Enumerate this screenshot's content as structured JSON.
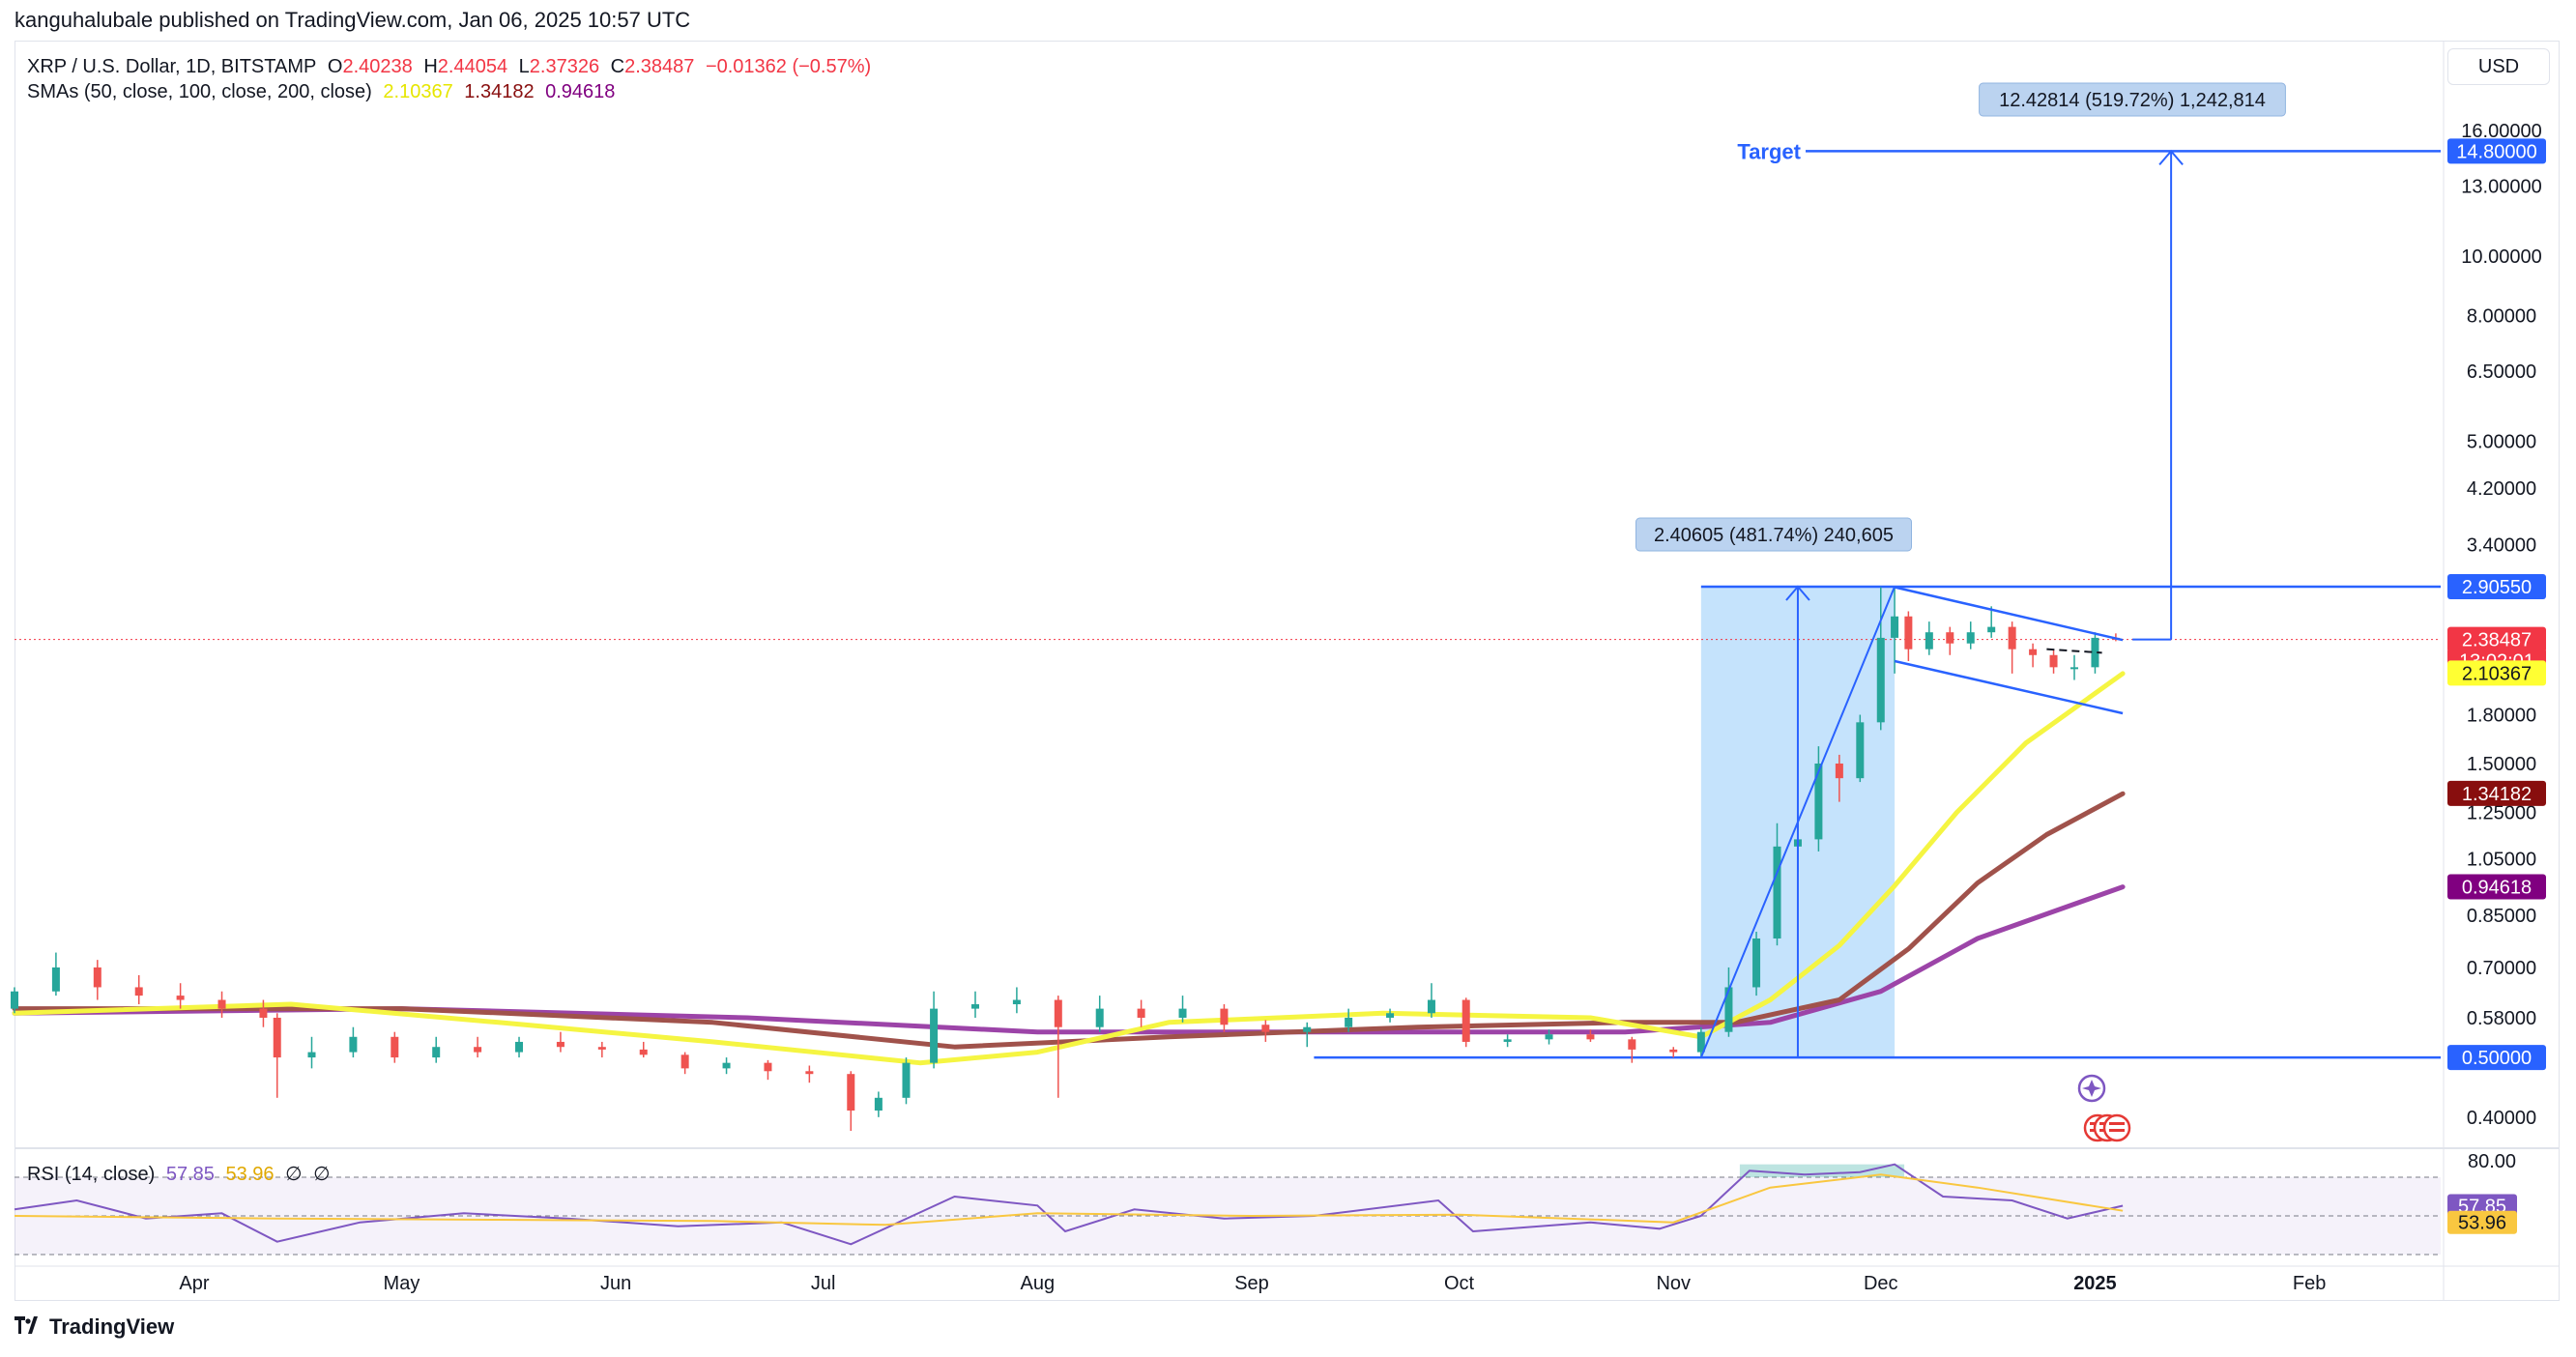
{
  "attribution": "kanguhalubale published on TradingView.com, Jan 06, 2025 10:57 UTC",
  "symbol": {
    "title": "XRP / U.S. Dollar, 1D, BITSTAMP",
    "open_label": "O",
    "open": "2.40238",
    "high_label": "H",
    "high": "2.44054",
    "low_label": "L",
    "low": "2.37326",
    "close_label": "C",
    "close": "2.38487",
    "change": "−0.01362 (−0.57%)"
  },
  "sma_legend": {
    "title": "SMAs (50, close, 100, close, 200, close)",
    "sma50": "2.10367",
    "sma100": "1.34182",
    "sma200": "0.94618"
  },
  "rsi_legend": {
    "title": "RSI (14, close)",
    "rsi": "57.85",
    "ma": "53.96",
    "extra1": "∅",
    "extra2": "∅"
  },
  "currency_button": "USD",
  "brand": "TradingView",
  "colors": {
    "up": "#26a69a",
    "down": "#ef5350",
    "sma50": "#f5f542",
    "sma100": "#a0524b",
    "sma200": "#9c44a8",
    "drawing": "#2962ff",
    "rsi_line": "#7e57c2",
    "rsi_ma": "#f9c740"
  },
  "chart_data": {
    "type": "candlestick",
    "y_scale": "log",
    "ylim": [
      0.36,
      17.5
    ],
    "x_tick_labels": [
      "Apr",
      "May",
      "Jun",
      "Jul",
      "Aug",
      "Sep",
      "Oct",
      "Nov",
      "Dec",
      "2025",
      "Feb"
    ],
    "x_tick_dates": [
      "2024-04-01",
      "2024-05-01",
      "2024-06-01",
      "2024-07-01",
      "2024-08-01",
      "2024-09-01",
      "2024-10-01",
      "2024-11-01",
      "2024-12-01",
      "2025-01-01",
      "2025-02-01"
    ],
    "x_range": [
      "2024-03-06",
      "2025-02-20"
    ],
    "y_tick_labels": [
      "16.00000",
      "13.00000",
      "10.00000",
      "8.00000",
      "6.50000",
      "5.00000",
      "4.20000",
      "3.40000",
      "1.80000",
      "1.50000",
      "1.25000",
      "1.05000",
      "0.85000",
      "0.70000",
      "0.58000",
      "0.40000"
    ],
    "y_tick_values": [
      16.0,
      13.0,
      10.0,
      8.0,
      6.5,
      5.0,
      4.2,
      3.4,
      1.8,
      1.5,
      1.25,
      1.05,
      0.85,
      0.7,
      0.58,
      0.4
    ],
    "price_tags": [
      {
        "label": "14.80000",
        "value": 14.8,
        "color": "#2962ff",
        "text_color": "#ffffff"
      },
      {
        "label": "2.90550",
        "value": 2.9055,
        "color": "#2962ff",
        "text_color": "#ffffff"
      },
      {
        "label": "2.38487",
        "value": 2.38487,
        "color": "#f23645",
        "text_color": "#ffffff"
      },
      {
        "label": "13:02:01",
        "value": 2.29,
        "color": "#f23645",
        "text_color": "#ffffff"
      },
      {
        "label": "2.10367",
        "value": 2.10367,
        "color": "#ffff33",
        "text_color": "#131722"
      },
      {
        "label": "1.34182",
        "value": 1.34182,
        "color": "#880e0e",
        "text_color": "#ffffff"
      },
      {
        "label": "0.94618",
        "value": 0.94618,
        "color": "#800080",
        "text_color": "#ffffff"
      },
      {
        "label": "0.50000",
        "value": 0.5,
        "color": "#2962ff",
        "text_color": "#ffffff"
      }
    ],
    "annotations": {
      "target_label": "Target",
      "target_price": 14.8,
      "target_measure": "12.42814 (519.72%) 1,242,814",
      "pole_measure": "2.40605 (481.74%) 240,605",
      "pole_range": {
        "start": "2024-11-05",
        "end": "2024-12-03",
        "low": 0.5,
        "high": 2.9055
      },
      "support_price": 0.5,
      "channel_upper": [
        [
          "2024-12-03",
          2.9
        ],
        [
          "2025-01-05",
          2.38
        ]
      ],
      "channel_lower": [
        [
          "2024-12-03",
          2.2
        ],
        [
          "2025-01-05",
          1.81
        ]
      ]
    },
    "candles": [
      [
        "2024-03-06",
        0.6,
        0.65,
        0.59,
        0.64
      ],
      [
        "2024-03-12",
        0.64,
        0.74,
        0.63,
        0.7
      ],
      [
        "2024-03-18",
        0.7,
        0.72,
        0.62,
        0.65
      ],
      [
        "2024-03-24",
        0.65,
        0.68,
        0.61,
        0.63
      ],
      [
        "2024-03-30",
        0.63,
        0.66,
        0.6,
        0.62
      ],
      [
        "2024-04-05",
        0.62,
        0.64,
        0.58,
        0.6
      ],
      [
        "2024-04-11",
        0.6,
        0.62,
        0.56,
        0.58
      ],
      [
        "2024-04-13",
        0.58,
        0.59,
        0.43,
        0.5
      ],
      [
        "2024-04-18",
        0.5,
        0.54,
        0.48,
        0.51
      ],
      [
        "2024-04-24",
        0.51,
        0.56,
        0.5,
        0.54
      ],
      [
        "2024-04-30",
        0.54,
        0.55,
        0.49,
        0.5
      ],
      [
        "2024-05-06",
        0.5,
        0.54,
        0.49,
        0.52
      ],
      [
        "2024-05-12",
        0.52,
        0.54,
        0.5,
        0.51
      ],
      [
        "2024-05-18",
        0.51,
        0.54,
        0.5,
        0.53
      ],
      [
        "2024-05-24",
        0.53,
        0.55,
        0.51,
        0.52
      ],
      [
        "2024-05-30",
        0.52,
        0.53,
        0.5,
        0.515
      ],
      [
        "2024-06-05",
        0.515,
        0.53,
        0.5,
        0.505
      ],
      [
        "2024-06-11",
        0.505,
        0.51,
        0.47,
        0.48
      ],
      [
        "2024-06-17",
        0.48,
        0.5,
        0.47,
        0.49
      ],
      [
        "2024-06-23",
        0.49,
        0.495,
        0.46,
        0.475
      ],
      [
        "2024-06-29",
        0.475,
        0.485,
        0.455,
        0.47
      ],
      [
        "2024-07-05",
        0.47,
        0.475,
        0.38,
        0.41
      ],
      [
        "2024-07-09",
        0.41,
        0.44,
        0.4,
        0.43
      ],
      [
        "2024-07-13",
        0.43,
        0.5,
        0.42,
        0.49
      ],
      [
        "2024-07-17",
        0.49,
        0.64,
        0.48,
        0.6
      ],
      [
        "2024-07-23",
        0.6,
        0.64,
        0.58,
        0.61
      ],
      [
        "2024-07-29",
        0.61,
        0.65,
        0.59,
        0.62
      ],
      [
        "2024-08-04",
        0.62,
        0.63,
        0.43,
        0.56
      ],
      [
        "2024-08-10",
        0.56,
        0.63,
        0.55,
        0.6
      ],
      [
        "2024-08-16",
        0.6,
        0.62,
        0.56,
        0.58
      ],
      [
        "2024-08-22",
        0.58,
        0.63,
        0.57,
        0.6
      ],
      [
        "2024-08-28",
        0.6,
        0.61,
        0.55,
        0.565
      ],
      [
        "2024-09-03",
        0.565,
        0.575,
        0.53,
        0.55
      ],
      [
        "2024-09-09",
        0.55,
        0.57,
        0.52,
        0.56
      ],
      [
        "2024-09-15",
        0.56,
        0.6,
        0.55,
        0.58
      ],
      [
        "2024-09-21",
        0.58,
        0.6,
        0.57,
        0.59
      ],
      [
        "2024-09-27",
        0.59,
        0.66,
        0.58,
        0.62
      ],
      [
        "2024-10-02",
        0.62,
        0.625,
        0.52,
        0.53
      ],
      [
        "2024-10-08",
        0.53,
        0.545,
        0.52,
        0.535
      ],
      [
        "2024-10-14",
        0.535,
        0.555,
        0.525,
        0.545
      ],
      [
        "2024-10-20",
        0.545,
        0.555,
        0.53,
        0.535
      ],
      [
        "2024-10-26",
        0.535,
        0.54,
        0.49,
        0.515
      ],
      [
        "2024-11-01",
        0.515,
        0.52,
        0.5,
        0.51
      ],
      [
        "2024-11-05",
        0.51,
        0.56,
        0.5,
        0.55
      ],
      [
        "2024-11-09",
        0.55,
        0.7,
        0.54,
        0.65
      ],
      [
        "2024-11-13",
        0.65,
        0.8,
        0.63,
        0.78
      ],
      [
        "2024-11-16",
        0.78,
        1.2,
        0.76,
        1.1
      ],
      [
        "2024-11-19",
        1.1,
        1.2,
        1.0,
        1.13
      ],
      [
        "2024-11-22",
        1.13,
        1.6,
        1.08,
        1.5
      ],
      [
        "2024-11-25",
        1.5,
        1.55,
        1.3,
        1.42
      ],
      [
        "2024-11-28",
        1.42,
        1.8,
        1.4,
        1.75
      ],
      [
        "2024-12-01",
        1.75,
        2.9,
        1.7,
        2.4
      ],
      [
        "2024-12-03",
        2.4,
        2.905,
        2.1,
        2.6
      ],
      [
        "2024-12-05",
        2.6,
        2.65,
        2.2,
        2.3
      ],
      [
        "2024-12-08",
        2.3,
        2.55,
        2.25,
        2.45
      ],
      [
        "2024-12-11",
        2.45,
        2.5,
        2.25,
        2.35
      ],
      [
        "2024-12-14",
        2.35,
        2.55,
        2.3,
        2.45
      ],
      [
        "2024-12-17",
        2.45,
        2.7,
        2.4,
        2.5
      ],
      [
        "2024-12-20",
        2.5,
        2.55,
        2.1,
        2.3
      ],
      [
        "2024-12-23",
        2.3,
        2.35,
        2.15,
        2.25
      ],
      [
        "2024-12-26",
        2.25,
        2.3,
        2.1,
        2.15
      ],
      [
        "2024-12-29",
        2.15,
        2.25,
        2.05,
        2.15
      ],
      [
        "2025-01-01",
        2.15,
        2.45,
        2.1,
        2.4
      ],
      [
        "2025-01-04",
        2.4,
        2.44,
        2.37,
        2.385
      ]
    ],
    "sma_series": [
      {
        "name": "sma50",
        "points": [
          [
            "2024-03-06",
            0.59
          ],
          [
            "2024-04-15",
            0.61
          ],
          [
            "2024-05-15",
            0.57
          ],
          [
            "2024-06-15",
            0.53
          ],
          [
            "2024-07-15",
            0.49
          ],
          [
            "2024-08-01",
            0.51
          ],
          [
            "2024-08-20",
            0.57
          ],
          [
            "2024-09-20",
            0.59
          ],
          [
            "2024-10-20",
            0.58
          ],
          [
            "2024-11-05",
            0.54
          ],
          [
            "2024-11-15",
            0.62
          ],
          [
            "2024-11-25",
            0.76
          ],
          [
            "2024-12-03",
            0.95
          ],
          [
            "2024-12-12",
            1.25
          ],
          [
            "2024-12-22",
            1.62
          ],
          [
            "2025-01-05",
            2.1
          ]
        ]
      },
      {
        "name": "sma100",
        "points": [
          [
            "2024-03-06",
            0.6
          ],
          [
            "2024-05-01",
            0.6
          ],
          [
            "2024-06-15",
            0.57
          ],
          [
            "2024-07-20",
            0.52
          ],
          [
            "2024-08-20",
            0.54
          ],
          [
            "2024-09-25",
            0.56
          ],
          [
            "2024-10-25",
            0.57
          ],
          [
            "2024-11-10",
            0.57
          ],
          [
            "2024-11-25",
            0.62
          ],
          [
            "2024-12-05",
            0.75
          ],
          [
            "2024-12-15",
            0.96
          ],
          [
            "2024-12-25",
            1.15
          ],
          [
            "2025-01-05",
            1.34
          ]
        ]
      },
      {
        "name": "sma200",
        "points": [
          [
            "2024-03-06",
            0.59
          ],
          [
            "2024-05-01",
            0.6
          ],
          [
            "2024-06-20",
            0.58
          ],
          [
            "2024-08-01",
            0.55
          ],
          [
            "2024-09-15",
            0.55
          ],
          [
            "2024-10-25",
            0.55
          ],
          [
            "2024-11-15",
            0.57
          ],
          [
            "2024-12-01",
            0.64
          ],
          [
            "2024-12-15",
            0.78
          ],
          [
            "2025-01-05",
            0.946
          ]
        ]
      }
    ],
    "rsi": {
      "levels": [
        80,
        50,
        20
      ],
      "level_label": "80.00",
      "rsi_points": [
        [
          "2024-03-06",
          55
        ],
        [
          "2024-03-15",
          62
        ],
        [
          "2024-03-25",
          48
        ],
        [
          "2024-04-05",
          52
        ],
        [
          "2024-04-13",
          30
        ],
        [
          "2024-04-25",
          45
        ],
        [
          "2024-05-10",
          52
        ],
        [
          "2024-05-25",
          48
        ],
        [
          "2024-06-10",
          42
        ],
        [
          "2024-06-25",
          45
        ],
        [
          "2024-07-05",
          28
        ],
        [
          "2024-07-20",
          65
        ],
        [
          "2024-08-01",
          58
        ],
        [
          "2024-08-05",
          38
        ],
        [
          "2024-08-15",
          55
        ],
        [
          "2024-08-28",
          48
        ],
        [
          "2024-09-10",
          50
        ],
        [
          "2024-09-28",
          62
        ],
        [
          "2024-10-03",
          38
        ],
        [
          "2024-10-20",
          45
        ],
        [
          "2024-10-30",
          40
        ],
        [
          "2024-11-05",
          50
        ],
        [
          "2024-11-12",
          85
        ],
        [
          "2024-11-20",
          82
        ],
        [
          "2024-11-28",
          84
        ],
        [
          "2024-12-03",
          90
        ],
        [
          "2024-12-10",
          65
        ],
        [
          "2024-12-20",
          62
        ],
        [
          "2024-12-28",
          48
        ],
        [
          "2025-01-05",
          57.85
        ]
      ],
      "ma_points": [
        [
          "2024-03-06",
          50
        ],
        [
          "2024-04-13",
          48
        ],
        [
          "2024-05-15",
          47
        ],
        [
          "2024-06-15",
          46
        ],
        [
          "2024-07-10",
          43
        ],
        [
          "2024-08-01",
          52
        ],
        [
          "2024-09-01",
          50
        ],
        [
          "2024-10-01",
          51
        ],
        [
          "2024-11-01",
          45
        ],
        [
          "2024-11-15",
          72
        ],
        [
          "2024-12-01",
          82
        ],
        [
          "2024-12-15",
          72
        ],
        [
          "2025-01-05",
          53.96
        ]
      ]
    }
  }
}
